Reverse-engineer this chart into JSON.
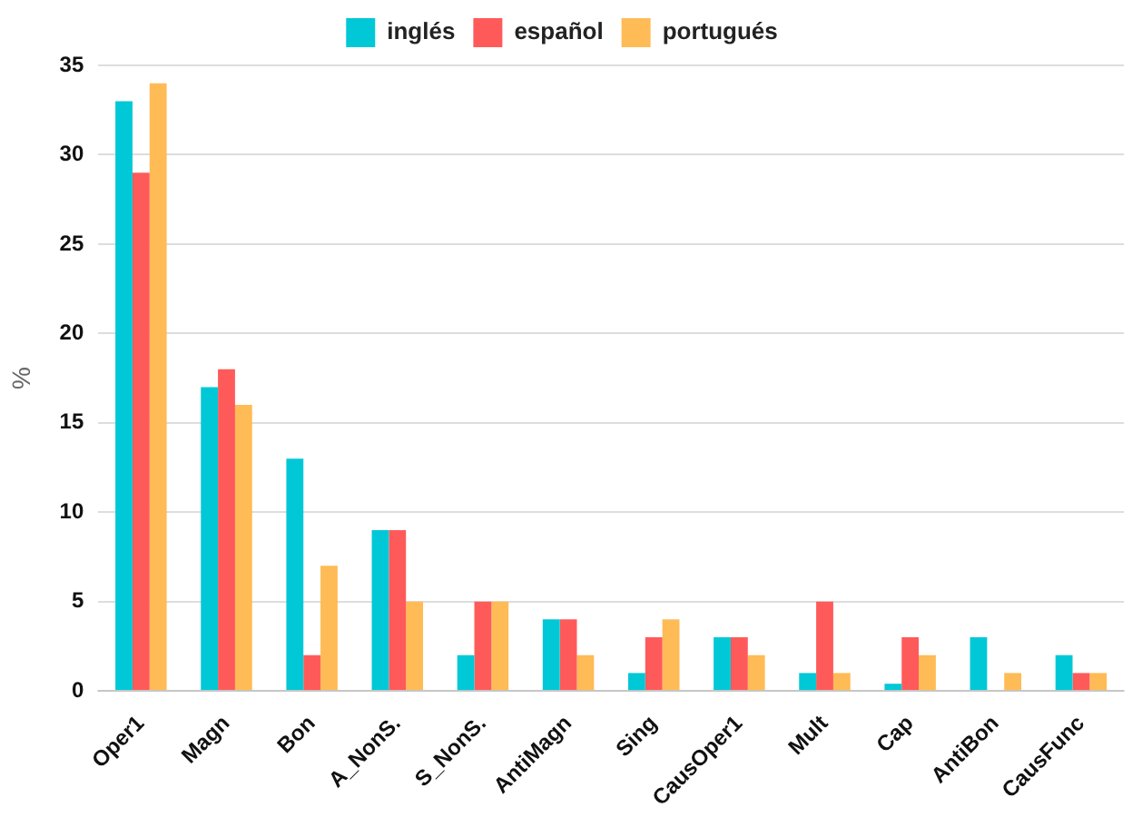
{
  "chart_data": {
    "type": "bar",
    "ylabel": "%",
    "categories": [
      "Oper1",
      "Magn",
      "Bon",
      "A_NonS.",
      "S_NonS.",
      "AntiMagn",
      "Sing",
      "CausOper1",
      "Mult",
      "Cap",
      "AntiBon",
      "CausFunc"
    ],
    "series": [
      {
        "name": "inglés",
        "color": "#00c8d7",
        "values": [
          33,
          17,
          13,
          9,
          2,
          4,
          1,
          3,
          1,
          0.4,
          3,
          2
        ]
      },
      {
        "name": "español",
        "color": "#ff5a5a",
        "values": [
          29,
          18,
          2,
          9,
          5,
          4,
          3,
          3,
          5,
          3,
          0,
          1
        ]
      },
      {
        "name": "portugués",
        "color": "#ffbb55",
        "values": [
          34,
          16,
          7,
          5,
          5,
          2,
          4,
          2,
          1,
          2,
          1,
          1
        ]
      }
    ],
    "ylim": [
      0,
      35
    ],
    "yticks": [
      0,
      5,
      10,
      15,
      20,
      25,
      30,
      35
    ],
    "grid": "y",
    "legend": "top"
  }
}
